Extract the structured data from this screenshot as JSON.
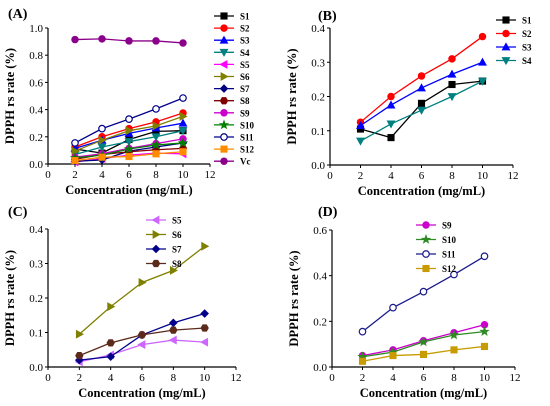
{
  "chart_data": [
    {
      "type": "line",
      "panel_label": "(A)",
      "xlabel": "Concentration (mg/mL)",
      "ylabel": "DPPH rs rate (%)",
      "xlim": [
        0,
        12
      ],
      "ylim": [
        0,
        1.0
      ],
      "xticks": [
        "0",
        "2",
        "4",
        "6",
        "8",
        "10",
        "12"
      ],
      "yticks": [
        "0.0",
        "0.2",
        "0.4",
        "0.6",
        "0.8",
        "1.0"
      ],
      "x": [
        2,
        4,
        6,
        8,
        10
      ],
      "legend": "right",
      "series": [
        {
          "name": "S1",
          "color": "#000000",
          "marker": "square",
          "values": [
            0.11,
            0.08,
            0.18,
            0.24,
            0.245
          ]
        },
        {
          "name": "S2",
          "color": "#ff0000",
          "marker": "circle",
          "values": [
            0.125,
            0.2,
            0.26,
            0.31,
            0.375
          ]
        },
        {
          "name": "S3",
          "color": "#0000ff",
          "marker": "triangle",
          "values": [
            0.115,
            0.175,
            0.225,
            0.265,
            0.3
          ]
        },
        {
          "name": "S4",
          "color": "#008080",
          "marker": "triangle-down",
          "values": [
            0.07,
            0.125,
            0.165,
            0.2,
            0.245
          ]
        },
        {
          "name": "S5",
          "color": "#ff00ff",
          "marker": "triangle-left",
          "values": [
            0.015,
            0.04,
            0.065,
            0.08,
            0.075
          ]
        },
        {
          "name": "S6",
          "color": "#808000",
          "marker": "triangle-right",
          "values": [
            0.095,
            0.175,
            0.245,
            0.28,
            0.35
          ]
        },
        {
          "name": "S7",
          "color": "#000080",
          "marker": "diamond",
          "values": [
            0.02,
            0.03,
            0.095,
            0.125,
            0.155
          ]
        },
        {
          "name": "S8",
          "color": "#800000",
          "marker": "hexagon",
          "values": [
            0.035,
            0.07,
            0.09,
            0.105,
            0.115
          ]
        },
        {
          "name": "S9",
          "color": "#cc00cc",
          "marker": "circle",
          "values": [
            0.05,
            0.075,
            0.115,
            0.15,
            0.185
          ]
        },
        {
          "name": "S10",
          "color": "#008000",
          "marker": "star",
          "values": [
            0.045,
            0.065,
            0.11,
            0.14,
            0.155
          ]
        },
        {
          "name": "S11",
          "color": "#00008b",
          "marker": "circle-open",
          "values": [
            0.155,
            0.26,
            0.33,
            0.405,
            0.485
          ]
        },
        {
          "name": "S12",
          "color": "#ff8c00",
          "marker": "square",
          "values": [
            0.025,
            0.05,
            0.055,
            0.075,
            0.09
          ]
        },
        {
          "name": "Vc",
          "color": "#8b008b",
          "marker": "circle",
          "values": [
            0.915,
            0.92,
            0.905,
            0.905,
            0.89
          ]
        }
      ]
    },
    {
      "type": "line",
      "panel_label": "(B)",
      "xlabel": "Concentration (mg/mL)",
      "ylabel": "DPPH rs rate (%)",
      "xlim": [
        0,
        12
      ],
      "ylim": [
        0,
        0.4
      ],
      "xticks": [
        "0",
        "2",
        "4",
        "6",
        "8",
        "10",
        "12"
      ],
      "yticks": [
        "0.0",
        "0.1",
        "0.2",
        "0.3",
        "0.4"
      ],
      "x": [
        2,
        4,
        6,
        8,
        10
      ],
      "legend": "right",
      "series": [
        {
          "name": "S1",
          "color": "#000000",
          "marker": "square",
          "values": [
            0.105,
            0.08,
            0.18,
            0.235,
            0.245
          ]
        },
        {
          "name": "S2",
          "color": "#ff0000",
          "marker": "circle",
          "values": [
            0.125,
            0.2,
            0.26,
            0.31,
            0.375
          ]
        },
        {
          "name": "S3",
          "color": "#0000ff",
          "marker": "triangle",
          "values": [
            0.115,
            0.175,
            0.225,
            0.265,
            0.3
          ]
        },
        {
          "name": "S4",
          "color": "#008080",
          "marker": "triangle-down",
          "values": [
            0.07,
            0.12,
            0.16,
            0.2,
            0.245
          ]
        }
      ]
    },
    {
      "type": "line",
      "panel_label": "(C)",
      "xlabel": "Concentration (mg/mL)",
      "ylabel": "DPPH rs rate (%)",
      "xlim": [
        0,
        12
      ],
      "ylim": [
        0,
        0.4
      ],
      "xticks": [
        "0",
        "2",
        "4",
        "6",
        "8",
        "10",
        "12"
      ],
      "yticks": [
        "0.0",
        "0.1",
        "0.2",
        "0.3",
        "0.4"
      ],
      "x": [
        2,
        4,
        6,
        8,
        10
      ],
      "legend": "right",
      "series": [
        {
          "name": "S5",
          "color": "#cc66ff",
          "marker": "triangle-left",
          "values": [
            0.015,
            0.035,
            0.065,
            0.078,
            0.072
          ]
        },
        {
          "name": "S6",
          "color": "#808000",
          "marker": "triangle-right",
          "values": [
            0.095,
            0.175,
            0.245,
            0.28,
            0.35
          ]
        },
        {
          "name": "S7",
          "color": "#00008b",
          "marker": "diamond",
          "values": [
            0.02,
            0.03,
            0.093,
            0.128,
            0.155
          ]
        },
        {
          "name": "S8",
          "color": "#5c2a1a",
          "marker": "hexagon",
          "values": [
            0.033,
            0.07,
            0.093,
            0.107,
            0.113
          ]
        }
      ]
    },
    {
      "type": "line",
      "panel_label": "(D)",
      "xlabel": "Concentration (mg/mL)",
      "ylabel": "DPPH rs rate (%)",
      "xlim": [
        0,
        12
      ],
      "ylim": [
        0,
        0.6
      ],
      "xticks": [
        "0",
        "2",
        "4",
        "6",
        "8",
        "10",
        "12"
      ],
      "yticks": [
        "0.0",
        "0.2",
        "0.4",
        "0.6"
      ],
      "x": [
        2,
        4,
        6,
        8,
        10
      ],
      "legend": "right",
      "series": [
        {
          "name": "S9",
          "color": "#cc00cc",
          "marker": "circle",
          "values": [
            0.05,
            0.075,
            0.115,
            0.15,
            0.185
          ]
        },
        {
          "name": "S10",
          "color": "#2e8b22",
          "marker": "star",
          "values": [
            0.045,
            0.065,
            0.11,
            0.14,
            0.155
          ]
        },
        {
          "name": "S11",
          "color": "#1a1a8b",
          "marker": "circle-open",
          "values": [
            0.155,
            0.26,
            0.33,
            0.405,
            0.485
          ]
        },
        {
          "name": "S12",
          "color": "#c89b00",
          "marker": "square",
          "values": [
            0.025,
            0.05,
            0.055,
            0.075,
            0.09
          ]
        }
      ]
    }
  ]
}
